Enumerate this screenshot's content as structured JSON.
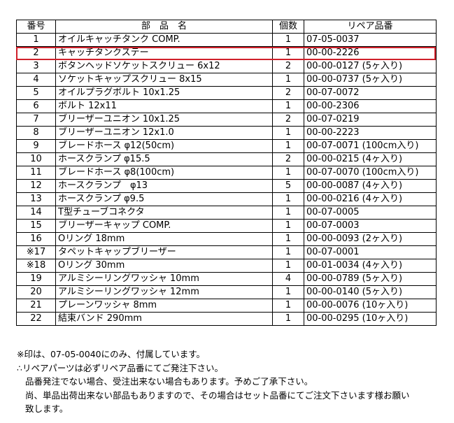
{
  "table": {
    "headers": {
      "no": "番号",
      "name": "部　品　名",
      "qty": "個数",
      "repair": "リペア品番"
    },
    "rows": [
      {
        "no": "1",
        "name": "オイルキャッチタンク COMP.",
        "qty": "1",
        "repair": "07-05-0037"
      },
      {
        "no": "2",
        "name": "キャッチタンクステー",
        "qty": "1",
        "repair": "00-00-2226"
      },
      {
        "no": "3",
        "name": "ボタンヘッドソケットスクリュー 6x12",
        "qty": "2",
        "repair": "00-00-0127 (5ヶ入り)"
      },
      {
        "no": "4",
        "name": "ソケットキャップスクリュー 8x15",
        "qty": "1",
        "repair": "00-00-0737 (5ヶ入り)"
      },
      {
        "no": "5",
        "name": "オイルプラグボルト 10x1.25",
        "qty": "2",
        "repair": "00-07-0072"
      },
      {
        "no": "6",
        "name": "ボルト 12x11",
        "qty": "1",
        "repair": "00-00-2306"
      },
      {
        "no": "7",
        "name": "ブリーザーユニオン 10x1.25",
        "qty": "2",
        "repair": "00-07-0219"
      },
      {
        "no": "8",
        "name": "ブリーザーユニオン 12x1.0",
        "qty": "1",
        "repair": "00-00-2223"
      },
      {
        "no": "9",
        "name": "ブレードホース φ12(50cm)",
        "qty": "1",
        "repair": "00-07-0071 (100cm入り)"
      },
      {
        "no": "10",
        "name": "ホースクランプ φ15.5",
        "qty": "2",
        "repair": "00-00-0215 (4ヶ入り)"
      },
      {
        "no": "11",
        "name": "ブレードホース φ8(100cm)",
        "qty": "1",
        "repair": "00-07-0070 (100cm入り)"
      },
      {
        "no": "12",
        "name": "ホースクランプ　φ13",
        "qty": "5",
        "repair": "00-00-0087 (4ヶ入り)"
      },
      {
        "no": "13",
        "name": "ホースクランプ φ9.5",
        "qty": "1",
        "repair": "00-00-0216 (4ヶ入り)"
      },
      {
        "no": "14",
        "name": "T型チューブコネクタ",
        "qty": "1",
        "repair": "00-07-0005"
      },
      {
        "no": "15",
        "name": "ブリーザーキャップ COMP.",
        "qty": "1",
        "repair": "00-07-0003"
      },
      {
        "no": "16",
        "name": "Oリング 18mm",
        "qty": "1",
        "repair": "00-00-0093 (2ヶ入り)"
      },
      {
        "no": "※17",
        "name": "タペットキャップブリーザー",
        "qty": "1",
        "repair": "00-07-0001"
      },
      {
        "no": "※18",
        "name": "Oリング 30mm",
        "qty": "1",
        "repair": "00-01-0034 (4ヶ入り)"
      },
      {
        "no": "19",
        "name": "アルミシーリングワッシャ 10mm",
        "qty": "4",
        "repair": "00-00-0789 (5ヶ入り)"
      },
      {
        "no": "20",
        "name": "アルミシーリングワッシャ 12mm",
        "qty": "1",
        "repair": "00-00-0140 (5ヶ入り)"
      },
      {
        "no": "21",
        "name": "プレーンワッシャ 8mm",
        "qty": "1",
        "repair": "00-00-0076 (10ヶ入り)"
      },
      {
        "no": "22",
        "name": "結束バンド 290mm",
        "qty": "1",
        "repair": "00-00-0295 (10ヶ入り)"
      }
    ]
  },
  "highlight_color": "#d0202a",
  "notes": [
    "※印は、07-05-0040にのみ、付属しています。",
    "∴リペアパーツは必ずリペア品番にてご発注下さい。",
    "品番発注でない場合、受注出来ない場合もあります。予めご了承下さい。",
    "尚、単品出荷出来ない部品もありますので、その場合はセット品番にてご注文下さいます様お願い",
    "致します。"
  ]
}
